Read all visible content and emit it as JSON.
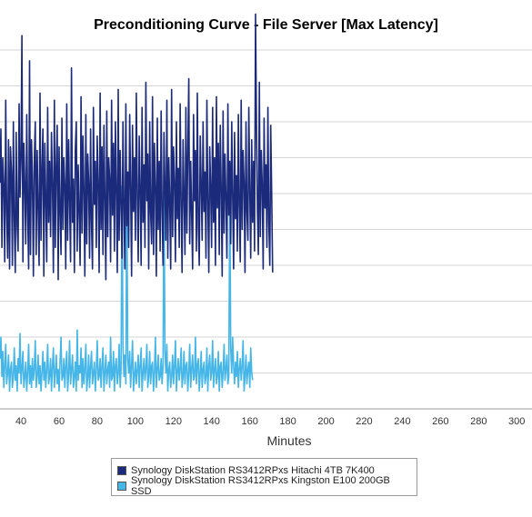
{
  "colors": {
    "hdd": "#1b2a7a",
    "ssd": "#45b6e7",
    "grid": "#c8c8c8",
    "axis": "#999999"
  },
  "chart_data": {
    "type": "line",
    "title": "Preconditioning Curve - File Server [Max Latency]",
    "xlabel": "Minutes",
    "ylabel": "",
    "xlim": [
      29,
      308
    ],
    "ylim": [
      0,
      1
    ],
    "x_ticks": [
      40,
      60,
      80,
      100,
      120,
      140,
      160,
      180,
      200,
      220,
      240,
      260,
      280,
      300
    ],
    "grid": true,
    "legend_position": "bottom",
    "series": [
      {
        "name": "Synology DiskStation RS3412RPxs Hitachi 4TB 7K400",
        "color": "#1b2a7a",
        "samples_per_minute": 2,
        "x_start": 29,
        "values": [
          0.63,
          0.78,
          0.45,
          0.7,
          0.62,
          0.41,
          0.86,
          0.55,
          0.42,
          0.75,
          0.39,
          0.73,
          0.66,
          0.4,
          0.8,
          0.53,
          0.38,
          0.77,
          0.51,
          0.44,
          0.85,
          0.59,
          0.7,
          1.04,
          0.41,
          0.74,
          0.62,
          0.46,
          0.82,
          0.55,
          0.39,
          0.97,
          0.43,
          0.75,
          0.65,
          0.37,
          0.69,
          0.8,
          0.43,
          0.72,
          0.56,
          0.4,
          0.88,
          0.47,
          0.66,
          0.78,
          0.37,
          0.74,
          0.59,
          0.41,
          0.84,
          0.52,
          0.69,
          0.48,
          0.77,
          0.62,
          0.38,
          0.86,
          0.45,
          0.68,
          0.79,
          0.36,
          0.73,
          0.56,
          0.43,
          0.81,
          0.5,
          0.7,
          0.62,
          0.39,
          0.85,
          0.47,
          0.75,
          0.58,
          0.41,
          0.95,
          0.52,
          0.64,
          0.38,
          0.72,
          0.8,
          0.44,
          0.68,
          0.55,
          0.4,
          0.87,
          0.49,
          0.76,
          0.6,
          0.37,
          0.82,
          0.46,
          0.71,
          0.63,
          0.42,
          0.78,
          0.52,
          0.39,
          0.84,
          0.57,
          0.69,
          0.45,
          0.76,
          0.62,
          0.38,
          0.88,
          0.5,
          0.73,
          0.43,
          0.79,
          0.59,
          0.36,
          0.83,
          0.48,
          0.7,
          0.64,
          0.41,
          0.86,
          0.54,
          0.74,
          0.44,
          0.8,
          0.61,
          0.38,
          0.89,
          0.47,
          0.72,
          0.57,
          0.42,
          0.8,
          0.55,
          0.39,
          0.85,
          0.51,
          0.66,
          0.45,
          0.82,
          0.63,
          0.37,
          0.79,
          0.55,
          0.7,
          0.47,
          0.88,
          0.59,
          0.41,
          0.76,
          0.62,
          0.4,
          0.84,
          0.52,
          0.68,
          0.45,
          0.91,
          0.58,
          0.71,
          0.39,
          0.8,
          0.55,
          0.46,
          0.87,
          0.43,
          0.74,
          0.62,
          0.37,
          0.81,
          0.5,
          0.69,
          0.44,
          0.83,
          0.56,
          0.4,
          0.77,
          0.61,
          0.47,
          0.86,
          0.42,
          0.7,
          0.58,
          0.39,
          0.89,
          0.48,
          0.73,
          0.63,
          0.41,
          0.8,
          0.53,
          0.67,
          0.45,
          0.85,
          0.57,
          0.38,
          0.75,
          0.6,
          0.43,
          0.84,
          0.49,
          0.71,
          0.92,
          0.46,
          0.69,
          0.55,
          0.39,
          0.82,
          0.58,
          0.72,
          0.44,
          0.88,
          0.51,
          0.4,
          0.76,
          0.63,
          0.47,
          0.8,
          0.55,
          0.66,
          0.42,
          0.86,
          0.59,
          0.38,
          0.73,
          0.61,
          0.45,
          0.84,
          0.52,
          0.7,
          0.4,
          0.87,
          0.56,
          0.74,
          0.43,
          0.79,
          0.62,
          0.37,
          0.83,
          0.49,
          0.71,
          0.58,
          0.42,
          0.85,
          0.54,
          0.69,
          0.46,
          0.8,
          0.6,
          0.39,
          0.77,
          0.53,
          0.65,
          0.44,
          0.82,
          0.57,
          0.41,
          0.86,
          0.5,
          0.72,
          0.63,
          0.38,
          0.8,
          0.55,
          0.47,
          0.84,
          0.6,
          0.42,
          0.75,
          0.52,
          0.69,
          0.44,
          1.1,
          0.8,
          0.55,
          0.43,
          0.91,
          0.48,
          0.72,
          0.63,
          0.39,
          0.81,
          0.56,
          0.68,
          0.45,
          0.84,
          0.52,
          0.4,
          0.79,
          0.59,
          0.38
        ]
      },
      {
        "name": "Synology DiskStation RS3412RPxs Kingston E100 200GB SSD",
        "color": "#45b6e7",
        "samples_per_minute": 2,
        "x_start": 29,
        "values": [
          0.14,
          0.2,
          0.09,
          0.16,
          0.06,
          0.12,
          0.18,
          0.07,
          0.1,
          0.15,
          0.05,
          0.11,
          0.13,
          0.06,
          0.09,
          0.17,
          0.08,
          0.12,
          0.05,
          0.14,
          0.1,
          0.21,
          0.07,
          0.11,
          0.16,
          0.06,
          0.09,
          0.13,
          0.05,
          0.1,
          0.18,
          0.07,
          0.12,
          0.06,
          0.14,
          0.08,
          0.11,
          0.19,
          0.06,
          0.09,
          0.15,
          0.07,
          0.12,
          0.05,
          0.1,
          0.16,
          0.08,
          0.13,
          0.06,
          0.11,
          0.18,
          0.07,
          0.09,
          0.14,
          0.05,
          0.12,
          0.17,
          0.06,
          0.1,
          0.15,
          0.07,
          0.11,
          0.05,
          0.13,
          0.2,
          0.08,
          0.09,
          0.14,
          0.06,
          0.12,
          0.16,
          0.05,
          0.1,
          0.19,
          0.07,
          0.11,
          0.15,
          0.06,
          0.09,
          0.13,
          0.05,
          0.22,
          0.08,
          0.12,
          0.1,
          0.17,
          0.06,
          0.14,
          0.07,
          0.11,
          0.18,
          0.05,
          0.09,
          0.15,
          0.06,
          0.12,
          0.16,
          0.07,
          0.1,
          0.13,
          0.05,
          0.11,
          0.19,
          0.08,
          0.09,
          0.14,
          0.06,
          0.12,
          0.17,
          0.05,
          0.1,
          0.15,
          0.07,
          0.11,
          0.13,
          0.06,
          0.2,
          0.08,
          0.09,
          0.16,
          0.05,
          0.12,
          0.14,
          0.07,
          0.1,
          0.18,
          0.06,
          0.11,
          0.62,
          0.18,
          0.09,
          0.15,
          0.07,
          0.63,
          0.14,
          0.1,
          0.16,
          0.06,
          0.12,
          0.19,
          0.05,
          0.09,
          0.13,
          0.07,
          0.11,
          0.15,
          0.06,
          0.12,
          0.17,
          0.05,
          0.1,
          0.14,
          0.08,
          0.11,
          0.18,
          0.06,
          0.09,
          0.16,
          0.07,
          0.12,
          0.13,
          0.05,
          0.1,
          0.2,
          0.06,
          0.11,
          0.15,
          0.08,
          0.09,
          0.14,
          0.07,
          0.12,
          0.63,
          0.16,
          0.1,
          0.18,
          0.05,
          0.11,
          0.13,
          0.06,
          0.09,
          0.15,
          0.07,
          0.12,
          0.19,
          0.05,
          0.1,
          0.14,
          0.08,
          0.11,
          0.17,
          0.06,
          0.09,
          0.16,
          0.07,
          0.12,
          0.13,
          0.05,
          0.1,
          0.18,
          0.06,
          0.11,
          0.15,
          0.08,
          0.09,
          0.2,
          0.07,
          0.12,
          0.14,
          0.05,
          0.1,
          0.16,
          0.06,
          0.11,
          0.13,
          0.07,
          0.09,
          0.17,
          0.05,
          0.12,
          0.15,
          0.08,
          0.1,
          0.19,
          0.06,
          0.11,
          0.14,
          0.07,
          0.09,
          0.16,
          0.05,
          0.12,
          0.13,
          0.06,
          0.1,
          0.18,
          0.08,
          0.11,
          0.15,
          0.07,
          0.09,
          0.62,
          0.17,
          0.1,
          0.2,
          0.12,
          0.07,
          0.13,
          0.09,
          0.16,
          0.06,
          0.11,
          0.14,
          0.08,
          0.12,
          0.19,
          0.05,
          0.09,
          0.15,
          0.07,
          0.11,
          0.13,
          0.06,
          0.17,
          0.1,
          0.08
        ]
      }
    ]
  }
}
